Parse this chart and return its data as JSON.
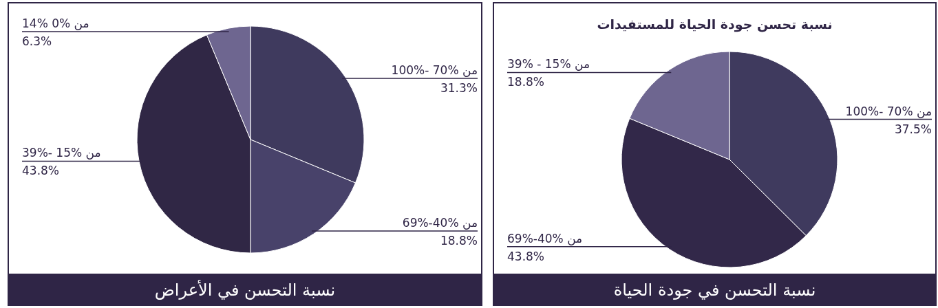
{
  "chart_data": [
    {
      "type": "pie",
      "categories": [
        "من %70 -%100",
        "من %40-%69",
        "من %15 -%39",
        "من %0 %14"
      ],
      "values": [
        31.3,
        18.8,
        43.8,
        6.3
      ],
      "value_labels": [
        "31.3%",
        "18.8%",
        "43.8%",
        "6.3%"
      ],
      "colors": [
        "#3f3a5e",
        "#48426a",
        "#302745",
        "#6e6690"
      ],
      "annotations": [
        "نسبة التحسن في الأعراض"
      ]
    },
    {
      "type": "pie",
      "title": "نسبة تحسن جودة الحياة للمستفيدات",
      "categories": [
        "من %70 -%100",
        "من %40-%69",
        "من %15 - %39"
      ],
      "values": [
        37.5,
        43.8,
        18.8
      ],
      "value_labels": [
        "37.5%",
        "43.8%",
        "18.8%"
      ],
      "colors": [
        "#3f3a5e",
        "#322849",
        "#6e6690"
      ],
      "annotations": [
        "نسبة التحسن في جودة الحياة"
      ]
    }
  ]
}
